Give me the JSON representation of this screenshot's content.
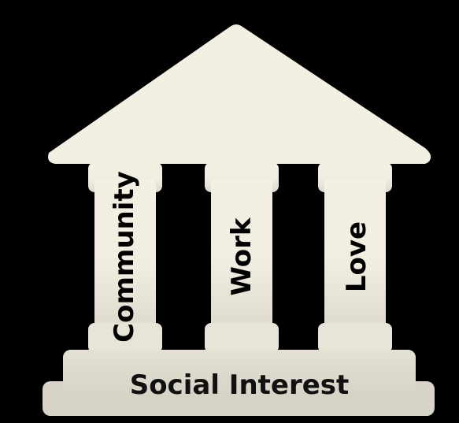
{
  "diagram": {
    "pillars": [
      {
        "label": "Community"
      },
      {
        "label": "Work"
      },
      {
        "label": "Love"
      }
    ],
    "foundation": {
      "label": "Social Interest"
    },
    "colors": {
      "background": "#000000",
      "structure_light": "#f3efe3",
      "structure_shade": "#dcd8cc",
      "text": "#000000"
    }
  }
}
